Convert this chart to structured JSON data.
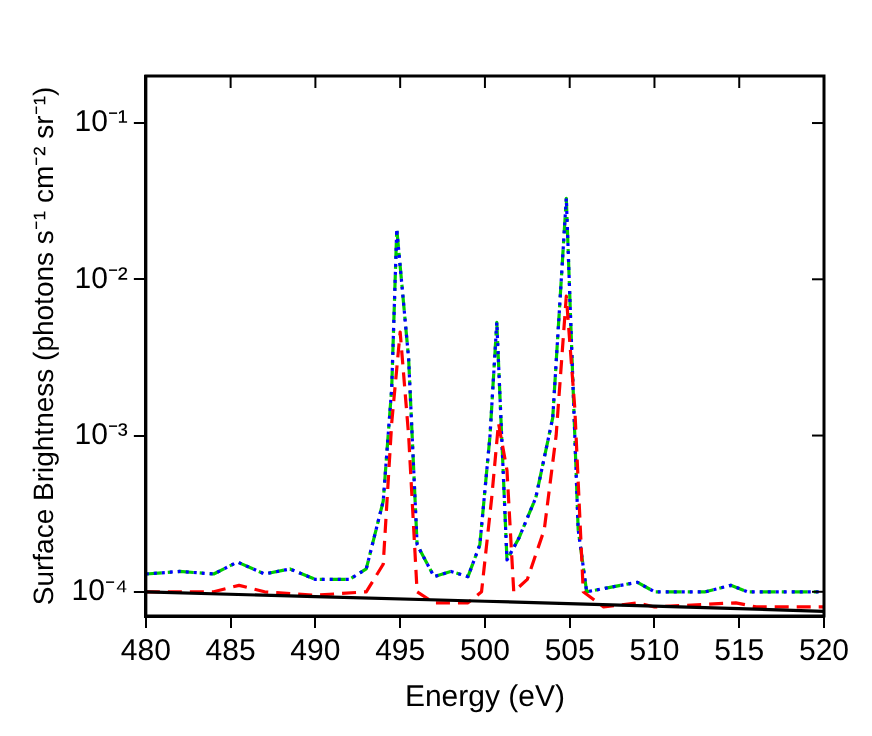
{
  "chart_data": {
    "type": "line",
    "xlabel": "Energy (eV)",
    "ylabel": "Surface Brightness (photons s⁻¹ cm⁻² sr⁻¹)",
    "log": "y",
    "grid": false,
    "legend": false,
    "marker": "none",
    "xlim": [
      480,
      520
    ],
    "xticks": [
      480,
      485,
      490,
      495,
      500,
      505,
      510,
      515,
      520
    ],
    "ylim": [
      7e-05,
      0.2
    ],
    "yticks": [
      {
        "value": 0.0001,
        "label": "10⁻⁴"
      },
      {
        "value": 0.001,
        "label": "10⁻³"
      },
      {
        "value": 0.01,
        "label": "10⁻²"
      },
      {
        "value": 0.1,
        "label": "10⁻¹"
      }
    ],
    "series": [
      {
        "color": "#000000",
        "line_style": "solid",
        "x": [
          480,
          490,
          500,
          510,
          520
        ],
        "values": [
          0.0001,
          9.3e-05,
          8.7e-05,
          8.1e-05,
          7.5e-05
        ]
      },
      {
        "color": "#ff0000",
        "line_style": "dashed",
        "x": [
          480,
          484,
          485.5,
          487,
          490,
          493,
          494,
          494.5,
          495,
          495.5,
          496,
          497,
          499,
          499.8,
          500.4,
          500.8,
          501.3,
          501.7,
          502.5,
          503.5,
          504.2,
          504.8,
          505.3,
          505.8,
          507,
          509,
          510,
          514.8,
          516,
          520
        ],
        "values": [
          0.0001,
          0.0001,
          0.00011,
          0.0001,
          9.5e-05,
          0.0001,
          0.00015,
          0.0012,
          0.0046,
          0.001,
          0.0001,
          8.5e-05,
          8.5e-05,
          0.0001,
          0.0004,
          0.0012,
          0.0006,
          0.0001,
          0.00012,
          0.00025,
          0.001,
          0.0078,
          0.0015,
          0.0001,
          8e-05,
          8.5e-05,
          8e-05,
          8.5e-05,
          8e-05,
          8e-05
        ]
      },
      {
        "color": "#0000ff",
        "line_style": "dotted",
        "x": [
          480,
          482,
          484,
          485.4,
          487,
          488.5,
          490,
          492,
          493,
          494,
          494.5,
          494.8,
          495.5,
          496,
          497,
          498,
          499,
          499.7,
          500.3,
          500.7,
          501.3,
          502,
          503,
          504,
          504.8,
          505.5,
          506,
          508,
          509,
          510,
          513,
          514.5,
          515.5,
          520
        ],
        "values": [
          0.00013,
          0.000135,
          0.00013,
          0.000155,
          0.00013,
          0.00014,
          0.00012,
          0.00012,
          0.00014,
          0.00038,
          0.002,
          0.021,
          0.0031,
          0.0002,
          0.000125,
          0.000135,
          0.000125,
          0.0002,
          0.001,
          0.0053,
          0.00016,
          0.00022,
          0.0004,
          0.0013,
          0.033,
          0.00025,
          0.0001,
          0.00011,
          0.000115,
          0.0001,
          0.0001,
          0.00011,
          0.0001,
          0.0001
        ]
      },
      {
        "color": "#00cc00",
        "line_style": "dashdot",
        "x": [
          480,
          482,
          484,
          485.4,
          487,
          488.5,
          490,
          492,
          493,
          494,
          494.5,
          494.8,
          495.5,
          496,
          497,
          498,
          499,
          499.7,
          500.3,
          500.7,
          501.3,
          502,
          503,
          504,
          504.8,
          505.5,
          506,
          508,
          509,
          510,
          513,
          514.5,
          515.5,
          520
        ],
        "values": [
          0.00013,
          0.000135,
          0.00013,
          0.000155,
          0.00013,
          0.00014,
          0.00012,
          0.00012,
          0.00014,
          0.00038,
          0.002,
          0.021,
          0.0031,
          0.0002,
          0.000125,
          0.000135,
          0.000125,
          0.0002,
          0.001,
          0.0053,
          0.00016,
          0.00022,
          0.0004,
          0.0013,
          0.033,
          0.00025,
          0.0001,
          0.00011,
          0.000115,
          0.0001,
          0.0001,
          0.00011,
          0.0001,
          0.0001
        ]
      }
    ]
  }
}
